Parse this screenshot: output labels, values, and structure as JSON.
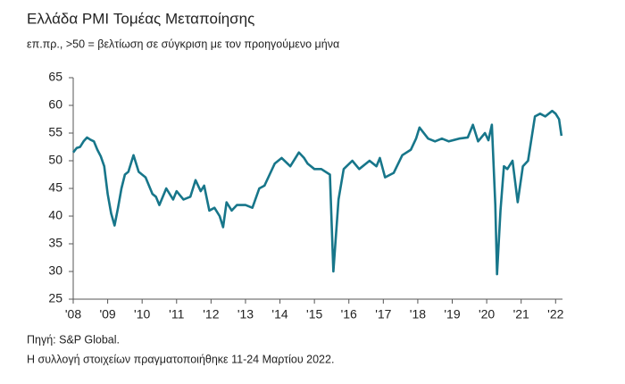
{
  "chart_data": {
    "type": "line",
    "title": "Ελλάδα PMI Τομέας Μεταποίησης",
    "subtitle": "επ.πρ., >50 = βελτίωση σε σύγκριση με τον προηγούμενο μήνα",
    "source": "Πηγή: S&P Global.",
    "note": "Η συλλογή στοιχείων πραγματοποιήθηκε 11-24 Μαρτίου 2022.",
    "color": "#17768a",
    "x": [
      2008.0,
      2008.1,
      2008.2,
      2008.3,
      2008.4,
      2008.5,
      2008.6,
      2008.7,
      2008.8,
      2008.9,
      2009.0,
      2009.1,
      2009.2,
      2009.3,
      2009.4,
      2009.5,
      2009.6,
      2009.75,
      2009.9,
      2010.1,
      2010.3,
      2010.4,
      2010.5,
      2010.7,
      2010.9,
      2011.0,
      2011.2,
      2011.4,
      2011.55,
      2011.7,
      2011.8,
      2011.95,
      2012.1,
      2012.25,
      2012.35,
      2012.45,
      2012.6,
      2012.75,
      2013.0,
      2013.2,
      2013.4,
      2013.55,
      2013.7,
      2013.85,
      2014.05,
      2014.3,
      2014.55,
      2014.7,
      2014.8,
      2015.0,
      2015.2,
      2015.45,
      2015.55,
      2015.7,
      2015.85,
      2016.1,
      2016.3,
      2016.6,
      2016.8,
      2016.9,
      2017.05,
      2017.3,
      2017.55,
      2017.8,
      2017.95,
      2018.05,
      2018.3,
      2018.5,
      2018.7,
      2018.9,
      2019.2,
      2019.45,
      2019.6,
      2019.75,
      2019.95,
      2020.05,
      2020.15,
      2020.25,
      2020.3,
      2020.4,
      2020.5,
      2020.6,
      2020.75,
      2020.9,
      2021.05,
      2021.2,
      2021.4,
      2021.55,
      2021.7,
      2021.9,
      2022.0,
      2022.1,
      2022.17
    ],
    "values": [
      51.5,
      52.3,
      52.5,
      53.5,
      54.2,
      53.8,
      53.5,
      52.0,
      50.8,
      49.0,
      44.0,
      40.5,
      38.3,
      41.5,
      45.0,
      47.5,
      48.0,
      51.0,
      48.0,
      47.0,
      44.0,
      43.5,
      42.0,
      45.0,
      43.0,
      44.5,
      43.0,
      43.5,
      46.5,
      44.5,
      45.5,
      41.0,
      41.5,
      40.0,
      38.0,
      42.5,
      41.0,
      42.0,
      42.0,
      41.5,
      45.0,
      45.5,
      47.5,
      49.5,
      50.5,
      49.0,
      51.5,
      50.5,
      49.5,
      48.5,
      48.5,
      47.5,
      30.0,
      43.0,
      48.5,
      50.0,
      48.5,
      50.0,
      49.0,
      50.5,
      47.0,
      47.8,
      51.0,
      52.0,
      54.0,
      56.0,
      54.0,
      53.5,
      54.0,
      53.5,
      54.0,
      54.2,
      56.5,
      53.5,
      55.0,
      53.7,
      56.5,
      42.0,
      29.5,
      41.0,
      49.0,
      48.5,
      50.0,
      42.5,
      49.0,
      50.0,
      58.0,
      58.5,
      58.0,
      59.0,
      58.5,
      57.5,
      54.5
    ],
    "xlim": [
      2008,
      2022.2
    ],
    "xticks": [
      {
        "value": 2008,
        "label": "'08"
      },
      {
        "value": 2009,
        "label": "'09"
      },
      {
        "value": 2010,
        "label": "'10"
      },
      {
        "value": 2011,
        "label": "'11"
      },
      {
        "value": 2012,
        "label": "'12"
      },
      {
        "value": 2013,
        "label": "'13"
      },
      {
        "value": 2014,
        "label": "'14"
      },
      {
        "value": 2015,
        "label": "'15"
      },
      {
        "value": 2016,
        "label": "'16"
      },
      {
        "value": 2017,
        "label": "'17"
      },
      {
        "value": 2018,
        "label": "'18"
      },
      {
        "value": 2019,
        "label": "'19"
      },
      {
        "value": 2020,
        "label": "'20"
      },
      {
        "value": 2021,
        "label": "'21"
      },
      {
        "value": 2022,
        "label": "'22"
      }
    ],
    "ylim": [
      25,
      65
    ],
    "yticks": [
      25,
      30,
      35,
      40,
      45,
      50,
      55,
      60,
      65
    ]
  }
}
